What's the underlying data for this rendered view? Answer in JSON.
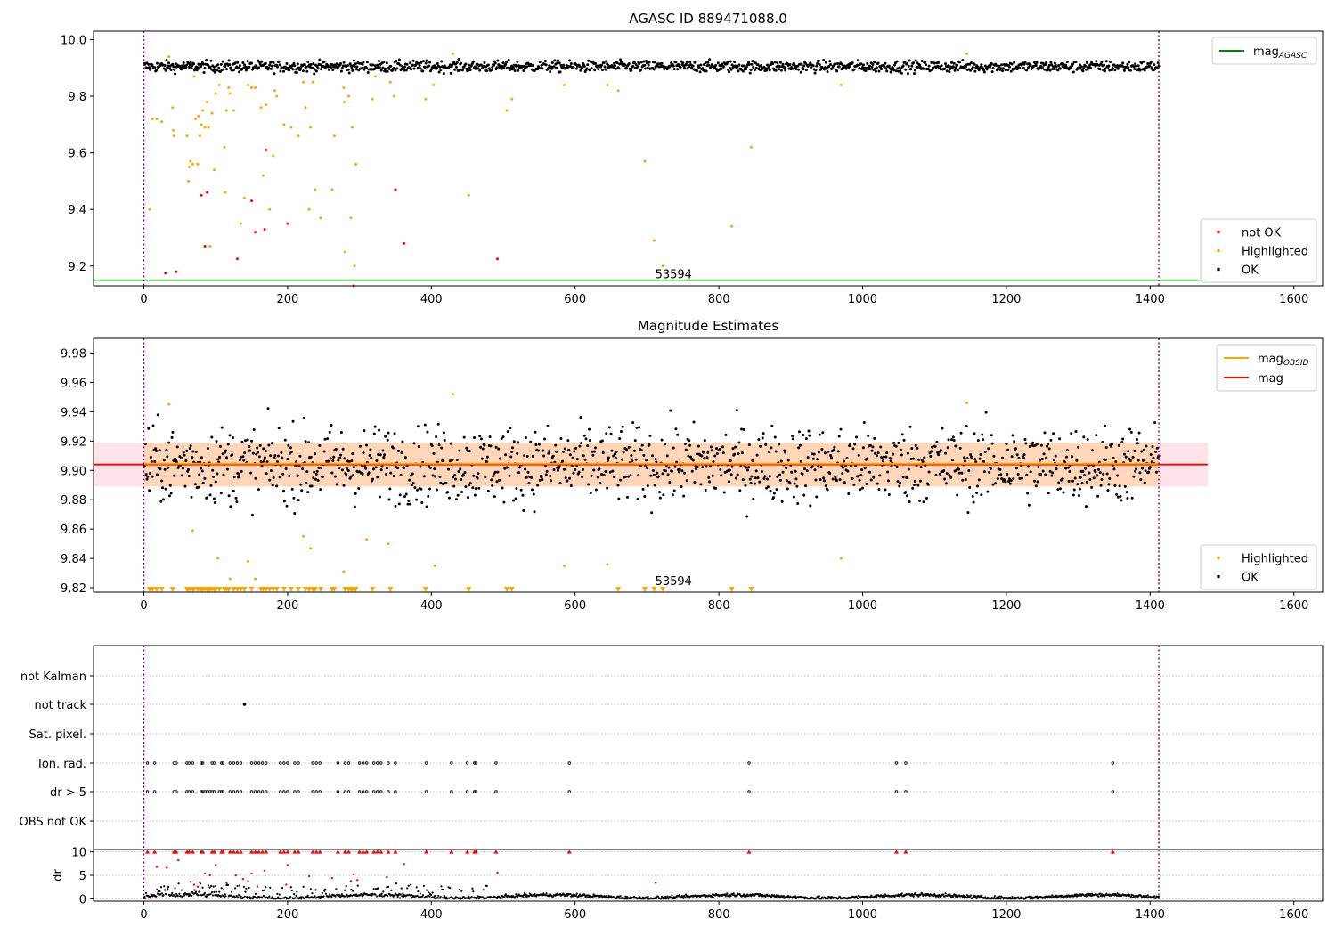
{
  "figure": {
    "background": "#ffffff"
  },
  "chart_data": [
    {
      "id": "panel1",
      "type": "scatter",
      "title": "AGASC ID 889471088.0",
      "xlim": [
        -70,
        1640
      ],
      "ylim": [
        9.13,
        10.03
      ],
      "xticks": [
        0,
        200,
        400,
        600,
        800,
        1000,
        1200,
        1400,
        1600
      ],
      "yticks": [
        9.2,
        9.4,
        9.6,
        9.8,
        10.0
      ],
      "ytick_labels": [
        "9.2",
        "9.4",
        "9.6",
        "9.8",
        "10.0"
      ],
      "vlines": [
        0,
        1412
      ],
      "hline": {
        "name": "mag_AGASC",
        "y": 9.15,
        "x_range": [
          -70,
          1480
        ],
        "color": "#008000"
      },
      "text_annotation": {
        "text": "53594",
        "x": 706,
        "y": 9.15
      },
      "legend_top": [
        {
          "label": "mag",
          "sub": "AGASC",
          "color": "#008000"
        }
      ],
      "legend_bottom": [
        {
          "label": "not OK",
          "color": "#ff0000"
        },
        {
          "label": "Highlighted",
          "color": "#ffa500"
        },
        {
          "label": "OK",
          "color": "#000000"
        }
      ],
      "ok_band": {
        "x_range": [
          0,
          1412
        ],
        "center": 9.905,
        "spread": 0.018,
        "count": 1300
      },
      "series": [
        {
          "name": "not OK",
          "color": "#ff0000",
          "points": [
            [
              30,
              9.175
            ],
            [
              45,
              9.18
            ],
            [
              80,
              9.45
            ],
            [
              85,
              9.27
            ],
            [
              88,
              9.46
            ],
            [
              130,
              9.225
            ],
            [
              150,
              9.43
            ],
            [
              155,
              9.32
            ],
            [
              168,
              9.33
            ],
            [
              170,
              9.61
            ],
            [
              200,
              9.35
            ],
            [
              350,
              9.47
            ],
            [
              362,
              9.28
            ],
            [
              492,
              9.225
            ],
            [
              292,
              9.13
            ]
          ]
        },
        {
          "name": "Highlighted",
          "color": "#ffa500",
          "points": [
            [
              8,
              9.4
            ],
            [
              12,
              9.72
            ],
            [
              18,
              9.72
            ],
            [
              25,
              9.71
            ],
            [
              35,
              9.94
            ],
            [
              40,
              9.76
            ],
            [
              41,
              9.68
            ],
            [
              42,
              9.66
            ],
            [
              60,
              9.66
            ],
            [
              62,
              9.5
            ],
            [
              63,
              9.55
            ],
            [
              65,
              9.57
            ],
            [
              68,
              9.56
            ],
            [
              70,
              9.87
            ],
            [
              72,
              9.72
            ],
            [
              75,
              9.56
            ],
            [
              76,
              9.73
            ],
            [
              78,
              9.66
            ],
            [
              80,
              9.7
            ],
            [
              82,
              9.75
            ],
            [
              85,
              9.69
            ],
            [
              88,
              9.78
            ],
            [
              90,
              9.69
            ],
            [
              92,
              9.27
            ],
            [
              95,
              9.74
            ],
            [
              98,
              9.54
            ],
            [
              100,
              9.81
            ],
            [
              105,
              9.84
            ],
            [
              112,
              9.62
            ],
            [
              113,
              9.46
            ],
            [
              115,
              9.75
            ],
            [
              118,
              9.83
            ],
            [
              120,
              9.81
            ],
            [
              125,
              9.75
            ],
            [
              135,
              9.35
            ],
            [
              140,
              9.44
            ],
            [
              145,
              9.84
            ],
            [
              150,
              9.83
            ],
            [
              155,
              9.83
            ],
            [
              163,
              9.76
            ],
            [
              166,
              9.52
            ],
            [
              170,
              9.77
            ],
            [
              175,
              9.4
            ],
            [
              180,
              9.59
            ],
            [
              182,
              9.82
            ],
            [
              185,
              9.8
            ],
            [
              195,
              9.7
            ],
            [
              205,
              9.69
            ],
            [
              215,
              9.66
            ],
            [
              222,
              9.85
            ],
            [
              225,
              9.76
            ],
            [
              230,
              9.4
            ],
            [
              232,
              9.69
            ],
            [
              235,
              9.85
            ],
            [
              238,
              9.47
            ],
            [
              246,
              9.37
            ],
            [
              262,
              9.47
            ],
            [
              265,
              9.66
            ],
            [
              278,
              9.83
            ],
            [
              279,
              9.78
            ],
            [
              280,
              9.25
            ],
            [
              285,
              9.8
            ],
            [
              288,
              9.37
            ],
            [
              290,
              9.69
            ],
            [
              293,
              9.2
            ],
            [
              295,
              9.56
            ],
            [
              318,
              9.79
            ],
            [
              322,
              9.87
            ],
            [
              343,
              9.85
            ],
            [
              348,
              9.8
            ],
            [
              392,
              9.79
            ],
            [
              403,
              9.84
            ],
            [
              430,
              9.95
            ],
            [
              452,
              9.45
            ],
            [
              505,
              9.75
            ],
            [
              512,
              9.79
            ],
            [
              585,
              9.84
            ],
            [
              645,
              9.84
            ],
            [
              660,
              9.82
            ],
            [
              697,
              9.57
            ],
            [
              710,
              9.29
            ],
            [
              722,
              9.2
            ],
            [
              818,
              9.34
            ],
            [
              845,
              9.62
            ],
            [
              970,
              9.84
            ],
            [
              1145,
              9.95
            ]
          ]
        }
      ]
    },
    {
      "id": "panel2",
      "type": "scatter",
      "title": "Magnitude Estimates",
      "xlim": [
        -70,
        1640
      ],
      "ylim": [
        9.817,
        9.99
      ],
      "xticks": [
        0,
        200,
        400,
        600,
        800,
        1000,
        1200,
        1400,
        1600
      ],
      "yticks": [
        9.82,
        9.84,
        9.86,
        9.88,
        9.9,
        9.92,
        9.94,
        9.96,
        9.98
      ],
      "ytick_labels": [
        "9.82",
        "9.84",
        "9.86",
        "9.88",
        "9.90",
        "9.92",
        "9.94",
        "9.96",
        "9.98"
      ],
      "vlines": [
        0,
        1412
      ],
      "text_annotation": {
        "text": "53594",
        "x": 706,
        "y": 9.82
      },
      "mag_line": {
        "y": 9.904,
        "x_range": [
          -70,
          1480
        ],
        "color": "#ff0000",
        "band": [
          9.889,
          9.919
        ]
      },
      "mag_obsid_line": {
        "y": 9.904,
        "x_range": [
          0,
          1412
        ],
        "color": "#ffa500",
        "band": [
          9.889,
          9.919
        ]
      },
      "legend_top": [
        {
          "label": "mag",
          "sub": "OBSID",
          "color": "#ffa500"
        },
        {
          "label": "mag",
          "sub": "",
          "color": "#ff0000"
        }
      ],
      "legend_bottom": [
        {
          "label": "Highlighted",
          "color": "#ffa500"
        },
        {
          "label": "OK",
          "color": "#000000"
        }
      ],
      "ok_band": {
        "x_range": [
          0,
          1412
        ],
        "center": 9.904,
        "spread": 0.013,
        "count": 1300
      },
      "series": [
        {
          "name": "Highlighted",
          "color": "#ffa500",
          "points": [
            [
              35,
              9.945
            ],
            [
              68,
              9.859
            ],
            [
              103,
              9.84
            ],
            [
              120,
              9.826
            ],
            [
              145,
              9.838
            ],
            [
              155,
              9.826
            ],
            [
              222,
              9.855
            ],
            [
              232,
              9.847
            ],
            [
              278,
              9.831
            ],
            [
              310,
              9.853
            ],
            [
              340,
              9.85
            ],
            [
              405,
              9.835
            ],
            [
              430,
              9.952
            ],
            [
              585,
              9.835
            ],
            [
              645,
              9.836
            ],
            [
              970,
              9.84
            ],
            [
              1145,
              9.946
            ]
          ]
        },
        {
          "name": "clipped",
          "color": "#ffa500",
          "marker": "triangle",
          "x_values": [
            8,
            12,
            18,
            25,
            40,
            60,
            62,
            65,
            68,
            70,
            75,
            78,
            80,
            82,
            85,
            88,
            90,
            92,
            95,
            98,
            100,
            105,
            112,
            115,
            118,
            125,
            130,
            135,
            140,
            150,
            163,
            166,
            170,
            175,
            180,
            185,
            195,
            205,
            215,
            225,
            230,
            235,
            238,
            246,
            262,
            265,
            280,
            285,
            288,
            290,
            293,
            295,
            318,
            343,
            392,
            452,
            505,
            512,
            660,
            697,
            710,
            722,
            818,
            845
          ]
        }
      ]
    },
    {
      "id": "panel3",
      "type": "scatter",
      "xlim": [
        -70,
        1640
      ],
      "vlines": [
        0,
        1412
      ],
      "rows": [
        "not Kalman",
        "not track",
        "Sat. pixel.",
        "Ion. rad.",
        "dr > 5",
        "OBS not OK"
      ],
      "row_points": {
        "not Kalman": [],
        "not track": [
          140
        ],
        "Sat. pixel.": [],
        "Ion. rad.": [
          5,
          15,
          42,
          45,
          60,
          63,
          68,
          80,
          82,
          95,
          98,
          108,
          110,
          120,
          125,
          130,
          135,
          150,
          155,
          160,
          165,
          170,
          190,
          195,
          200,
          210,
          215,
          235,
          240,
          245,
          270,
          280,
          285,
          300,
          305,
          310,
          320,
          325,
          330,
          340,
          350,
          393,
          428,
          450,
          460,
          462,
          490,
          592,
          842,
          1047,
          1060,
          1348
        ],
        "dr > 5": [
          5,
          15,
          42,
          45,
          60,
          63,
          68,
          80,
          82,
          85,
          88,
          92,
          95,
          98,
          105,
          108,
          110,
          120,
          125,
          130,
          135,
          150,
          155,
          160,
          165,
          170,
          190,
          195,
          200,
          210,
          215,
          235,
          240,
          245,
          270,
          280,
          285,
          300,
          305,
          310,
          320,
          325,
          330,
          340,
          350,
          393,
          428,
          450,
          460,
          462,
          490,
          592,
          842,
          1047,
          1060,
          1348
        ],
        "OBS not OK": []
      }
    },
    {
      "id": "panel4",
      "type": "scatter",
      "ylabel": "dr",
      "xlim": [
        -70,
        1640
      ],
      "ylim": [
        -0.5,
        10.5
      ],
      "xticks": [
        0,
        200,
        400,
        600,
        800,
        1000,
        1200,
        1400,
        1600
      ],
      "yticks": [
        0,
        5,
        10
      ],
      "ytick_labels": [
        "0",
        "5",
        "10"
      ],
      "vlines": [
        0,
        1412
      ],
      "series": [
        {
          "name": "dr capped",
          "color": "#ff0000",
          "marker": "triangle",
          "x_values": [
            5,
            15,
            42,
            45,
            60,
            63,
            68,
            80,
            82,
            95,
            98,
            108,
            110,
            120,
            125,
            130,
            135,
            150,
            155,
            160,
            165,
            170,
            190,
            195,
            200,
            210,
            215,
            235,
            240,
            245,
            270,
            280,
            285,
            300,
            305,
            310,
            320,
            325,
            330,
            340,
            350,
            393,
            428,
            450,
            460,
            462,
            490,
            592,
            842,
            1047,
            1060,
            1348
          ]
        },
        {
          "name": "dr high",
          "color": "#ff0000",
          "points": [
            [
              18,
              6.8
            ],
            [
              32,
              6.6
            ],
            [
              48,
              8.2
            ],
            [
              65,
              3.6
            ],
            [
              70,
              3.0
            ],
            [
              75,
              2.6
            ],
            [
              85,
              5.4
            ],
            [
              92,
              5.0
            ],
            [
              100,
              7.2
            ],
            [
              115,
              3.4
            ],
            [
              128,
              5.0
            ],
            [
              138,
              4.2
            ],
            [
              145,
              3.8
            ],
            [
              150,
              5.4
            ],
            [
              158,
              2.6
            ],
            [
              168,
              6.0
            ],
            [
              198,
              3.0
            ],
            [
              200,
              7.2
            ],
            [
              230,
              4.8
            ],
            [
              262,
              4.4
            ],
            [
              288,
              3.8
            ],
            [
              292,
              5.2
            ],
            [
              297,
              4.0
            ],
            [
              338,
              4.6
            ],
            [
              362,
              7.4
            ],
            [
              492,
              5.6
            ],
            [
              712,
              3.4
            ]
          ]
        },
        {
          "name": "dr ok",
          "color": "#000000",
          "band_center": 0.5,
          "band_spread": 0.35,
          "count": 1400
        }
      ]
    }
  ]
}
